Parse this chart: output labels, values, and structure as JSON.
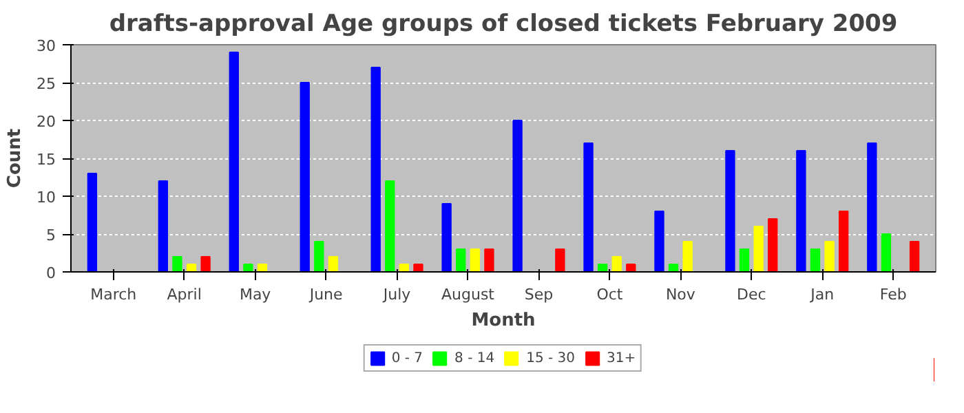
{
  "chart_data": {
    "type": "bar",
    "title": "drafts-approval Age groups of closed tickets February 2009",
    "xlabel": "Month",
    "ylabel": "Count",
    "categories": [
      "March",
      "April",
      "May",
      "June",
      "July",
      "August",
      "Sep",
      "Oct",
      "Nov",
      "Dec",
      "Jan",
      "Feb"
    ],
    "series": [
      {
        "name": "0 - 7",
        "color": "#0000ff",
        "values": [
          13,
          12,
          29,
          25,
          27,
          9,
          20,
          17,
          8,
          16,
          16,
          17
        ]
      },
      {
        "name": "8 - 14",
        "color": "#00ff00",
        "values": [
          0,
          2,
          1,
          4,
          12,
          3,
          0,
          1,
          1,
          3,
          3,
          5
        ]
      },
      {
        "name": "15 - 30",
        "color": "#ffff00",
        "values": [
          0,
          1,
          1,
          2,
          1,
          3,
          0,
          2,
          4,
          6,
          4,
          0
        ]
      },
      {
        "name": "31+",
        "color": "#ff0000",
        "values": [
          0,
          2,
          0,
          0,
          1,
          3,
          3,
          1,
          0,
          7,
          8,
          4
        ]
      }
    ],
    "ylim": [
      0,
      30
    ],
    "yticks": [
      0,
      5,
      10,
      15,
      20,
      25,
      30
    ],
    "grid": "y",
    "legend": "bottom"
  }
}
